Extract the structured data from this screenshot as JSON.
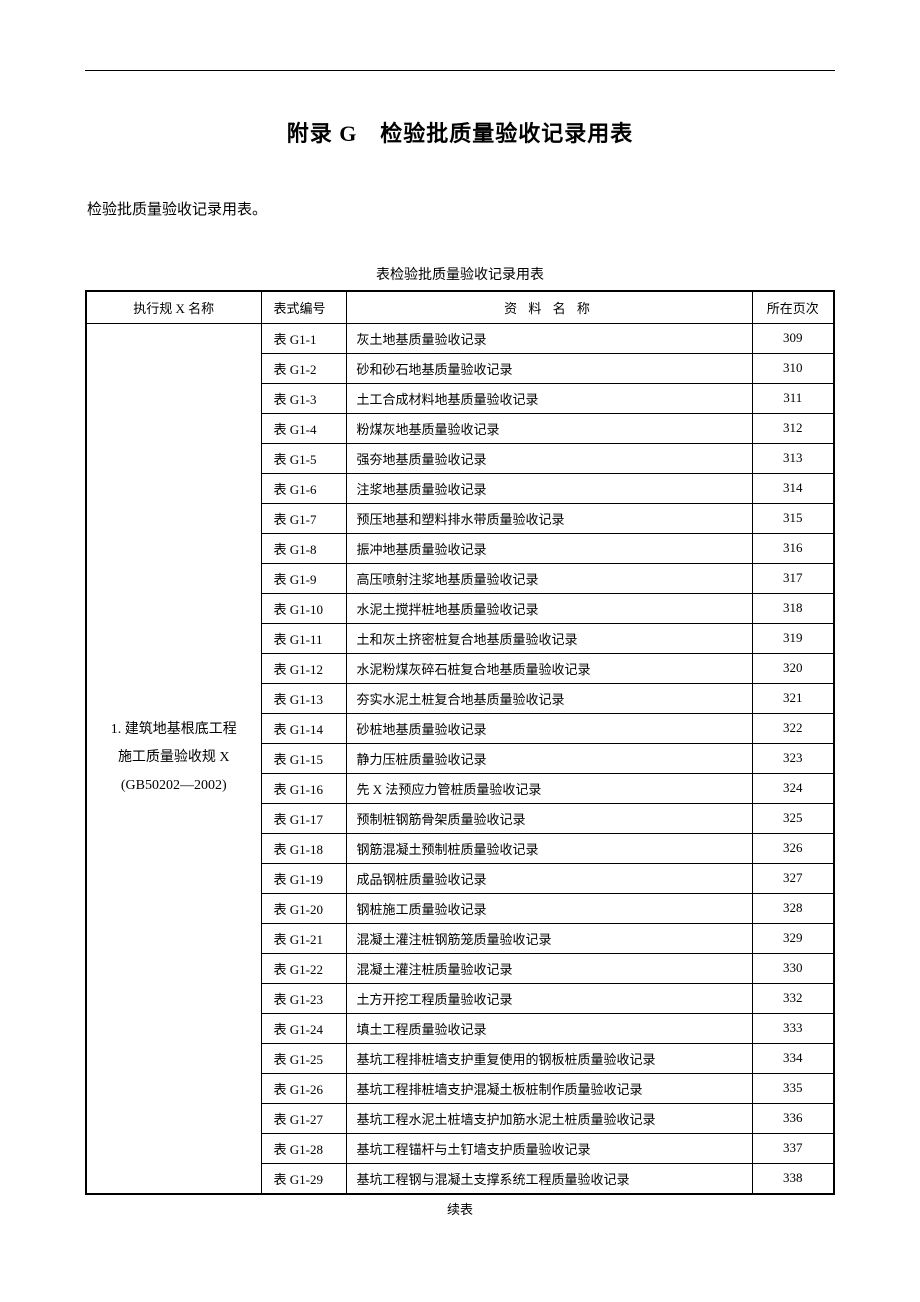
{
  "title": "附录 G　检验批质量验收记录用表",
  "intro": "检验批质量验收记录用表。",
  "caption": "表检验批质量验收记录用表",
  "footer": "续表",
  "headers": {
    "spec": "执行规 X 名称",
    "code": "表式编号",
    "name": "资 料 名 称",
    "page": "所在页次"
  },
  "category": {
    "line1": "1. 建筑地基根底工程",
    "line2": "施工质量验收规 X",
    "line3": "(GB50202—2002)"
  },
  "rows": [
    {
      "code": "表 G1-1",
      "name": "灰土地基质量验收记录",
      "page": "309"
    },
    {
      "code": "表 G1-2",
      "name": "砂和砂石地基质量验收记录",
      "page": "310"
    },
    {
      "code": "表 G1-3",
      "name": "土工合成材料地基质量验收记录",
      "page": "311"
    },
    {
      "code": "表 G1-4",
      "name": "粉煤灰地基质量验收记录",
      "page": "312"
    },
    {
      "code": "表 G1-5",
      "name": "强夯地基质量验收记录",
      "page": "313"
    },
    {
      "code": "表 G1-6",
      "name": "注浆地基质量验收记录",
      "page": "314"
    },
    {
      "code": "表 G1-7",
      "name": "预压地基和塑料排水带质量验收记录",
      "page": "315"
    },
    {
      "code": "表 G1-8",
      "name": "振冲地基质量验收记录",
      "page": "316"
    },
    {
      "code": "表 G1-9",
      "name": "高压喷射注浆地基质量验收记录",
      "page": "317"
    },
    {
      "code": "表 G1-10",
      "name": "水泥土搅拌桩地基质量验收记录",
      "page": "318"
    },
    {
      "code": "表 G1-11",
      "name": "土和灰土挤密桩复合地基质量验收记录",
      "page": "319"
    },
    {
      "code": "表 G1-12",
      "name": "水泥粉煤灰碎石桩复合地基质量验收记录",
      "page": "320"
    },
    {
      "code": "表 G1-13",
      "name": "夯实水泥土桩复合地基质量验收记录",
      "page": "321"
    },
    {
      "code": "表 G1-14",
      "name": "砂桩地基质量验收记录",
      "page": "322"
    },
    {
      "code": "表 G1-15",
      "name": "静力压桩质量验收记录",
      "page": "323"
    },
    {
      "code": "表 G1-16",
      "name": "先 X 法预应力管桩质量验收记录",
      "page": "324"
    },
    {
      "code": "表 G1-17",
      "name": "预制桩钢筋骨架质量验收记录",
      "page": "325"
    },
    {
      "code": "表 G1-18",
      "name": "钢筋混凝土预制桩质量验收记录",
      "page": "326"
    },
    {
      "code": "表 G1-19",
      "name": "成品钢桩质量验收记录",
      "page": "327"
    },
    {
      "code": "表 G1-20",
      "name": "钢桩施工质量验收记录",
      "page": "328"
    },
    {
      "code": "表 G1-21",
      "name": "混凝土灌注桩钢筋笼质量验收记录",
      "page": "329"
    },
    {
      "code": "表 G1-22",
      "name": "混凝土灌注桩质量验收记录",
      "page": "330"
    },
    {
      "code": "表 G1-23",
      "name": "土方开挖工程质量验收记录",
      "page": "332"
    },
    {
      "code": "表 G1-24",
      "name": "填土工程质量验收记录",
      "page": "333"
    },
    {
      "code": "表 G1-25",
      "name": "基坑工程排桩墙支护重复使用的钢板桩质量验收记录",
      "page": "334"
    },
    {
      "code": "表 G1-26",
      "name": "基坑工程排桩墙支护混凝土板桩制作质量验收记录",
      "page": "335"
    },
    {
      "code": "表 G1-27",
      "name": "基坑工程水泥土桩墙支护加筋水泥土桩质量验收记录",
      "page": "336"
    },
    {
      "code": "表 G1-28",
      "name": "基坑工程锚杆与土钉墙支护质量验收记录",
      "page": "337"
    },
    {
      "code": "表 G1-29",
      "name": "基坑工程钢与混凝土支撑系统工程质量验收记录",
      "page": "338"
    }
  ]
}
